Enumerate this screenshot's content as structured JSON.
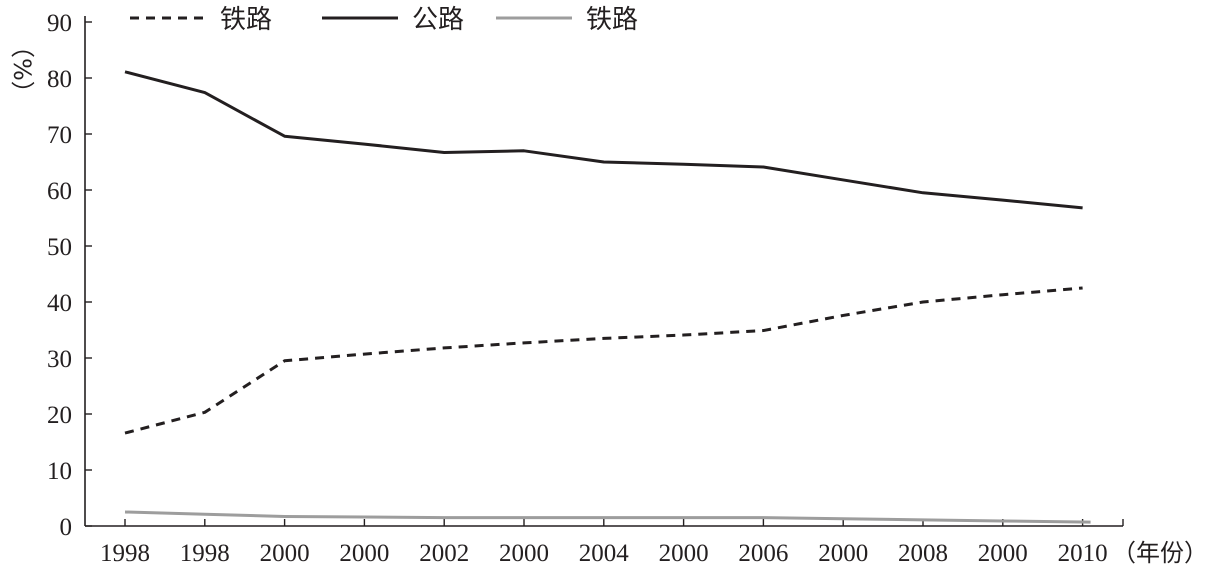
{
  "chart_data": {
    "type": "line",
    "categories": [
      "1998",
      "1998",
      "2000",
      "2000",
      "2002",
      "2000",
      "2004",
      "2000",
      "2006",
      "2000",
      "2008",
      "2000",
      "2010"
    ],
    "series": [
      {
        "name": "铁路",
        "style": "dashed",
        "color": "#231f20",
        "x": [
          0,
          1,
          2,
          3,
          4,
          5,
          6,
          7,
          8,
          9,
          10,
          11,
          12
        ],
        "values": [
          16.6,
          20.3,
          29.5,
          30.7,
          31.8,
          32.7,
          33.5,
          34.1,
          34.9,
          37.6,
          40.0,
          41.3,
          42.5
        ]
      },
      {
        "name": "公路",
        "style": "solid",
        "color": "#231f20",
        "x": [
          0,
          1,
          2,
          3,
          4,
          5,
          6,
          7,
          8,
          9,
          10,
          11,
          12
        ],
        "values": [
          81.1,
          77.4,
          69.6,
          68.2,
          66.7,
          67.0,
          65.0,
          64.6,
          64.1,
          61.8,
          59.5,
          58.2,
          56.8
        ]
      },
      {
        "name": "铁路",
        "style": "solid",
        "color": "#9d9d9d",
        "x": [
          0,
          1,
          2,
          3,
          4,
          5,
          6,
          7,
          8,
          9,
          10,
          11,
          12.1
        ],
        "values": [
          2.5,
          2.1,
          1.7,
          1.6,
          1.5,
          1.5,
          1.5,
          1.5,
          1.5,
          1.3,
          1.1,
          0.9,
          0.7
        ]
      }
    ],
    "yticks": [
      "0",
      "10",
      "20",
      "30",
      "40",
      "50",
      "60",
      "70",
      "80",
      "90"
    ],
    "ylim": [
      0,
      90
    ],
    "ylabel": "（%）",
    "xlabel": "（年份）",
    "legend_position": "top-left",
    "grid": false
  }
}
